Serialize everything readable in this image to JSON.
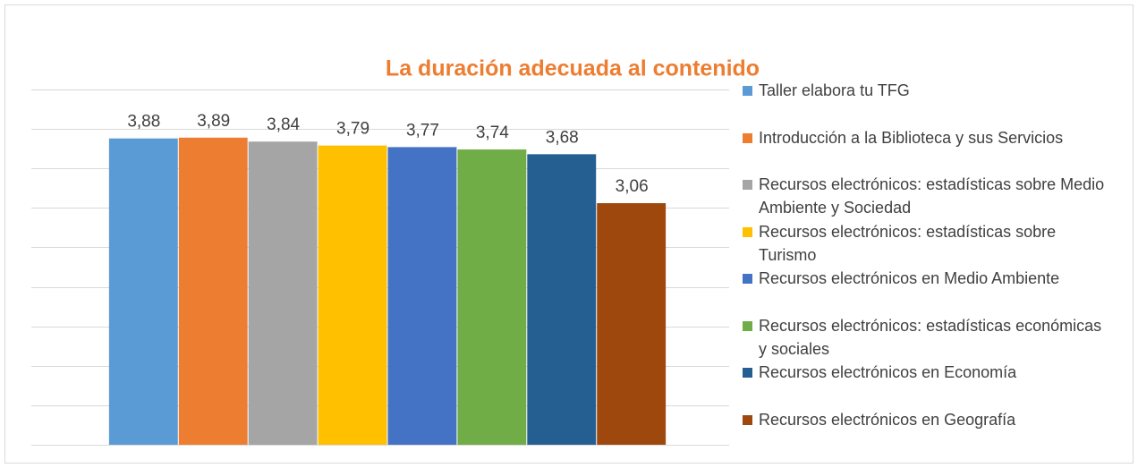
{
  "chart_data": {
    "type": "bar",
    "title": "La duración adecuada al contenido",
    "series": [
      {
        "name": "Taller elabora tu TFG",
        "color": "#5B9BD5",
        "values": [
          3.88
        ],
        "value_labels": [
          "3,88"
        ]
      },
      {
        "name": "Introducción a la Biblioteca y sus Servicios",
        "color": "#ED7D31",
        "values": [
          3.89
        ],
        "value_labels": [
          "3,89"
        ]
      },
      {
        "name": "Recursos electrónicos: estadísticas sobre Medio Ambiente y Sociedad",
        "color": "#A5A5A5",
        "values": [
          3.84
        ],
        "value_labels": [
          "3,84"
        ]
      },
      {
        "name": "Recursos electrónicos: estadísticas sobre Turismo",
        "color": "#FFC000",
        "values": [
          3.79
        ],
        "value_labels": [
          "3,79"
        ]
      },
      {
        "name": "Recursos electrónicos en Medio Ambiente",
        "color": "#4472C4",
        "values": [
          3.77
        ],
        "value_labels": [
          "3,77"
        ]
      },
      {
        "name": "Recursos electrónicos: estadísticas económicas y sociales",
        "color": "#70AD47",
        "values": [
          3.74
        ],
        "value_labels": [
          "3,74"
        ]
      },
      {
        "name": "Recursos electrónicos en Economía",
        "color": "#255E91",
        "values": [
          3.68
        ],
        "value_labels": [
          "3,68"
        ]
      },
      {
        "name": "Recursos electrónicos en Geografía",
        "color": "#9E480E",
        "values": [
          3.06
        ],
        "value_labels": [
          "3,06"
        ]
      }
    ],
    "ylim": [
      0,
      4.5
    ],
    "yticks": [
      0,
      0.5,
      1,
      1.5,
      2,
      2.5,
      3,
      3.5,
      4,
      4.5
    ],
    "grid": true,
    "legend": "right"
  }
}
